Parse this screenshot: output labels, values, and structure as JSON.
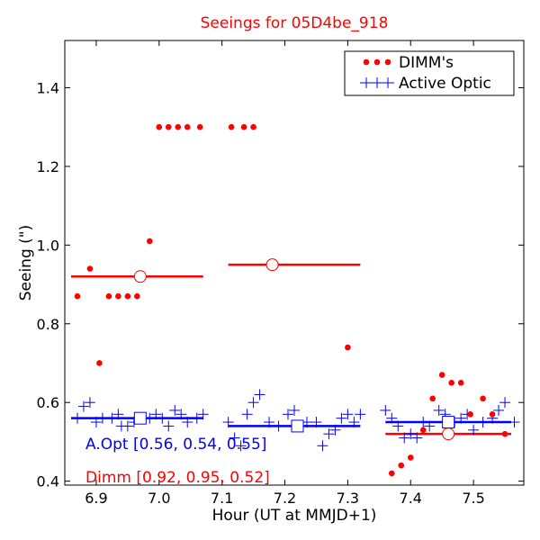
{
  "chart_data": {
    "type": "scatter",
    "title": "Seeings for 05D4be_918",
    "xlabel": "Hour (UT at MMJD+1)",
    "ylabel": "Seeing (\")",
    "xlim": [
      6.85,
      7.58
    ],
    "ylim": [
      0.39,
      1.52
    ],
    "xticks": [
      "6.9",
      "7.0",
      "7.1",
      "7.2",
      "7.3",
      "7.4",
      "7.5"
    ],
    "yticks": [
      "0.4",
      "0.6",
      "0.8",
      "1.0",
      "1.2",
      "1.4"
    ],
    "legend_position": "top-right",
    "colors": {
      "dimm": "#ff0000",
      "aopt": "#0000ff"
    },
    "series": [
      {
        "name": "DIMM's",
        "marker": "dot",
        "points": [
          [
            6.87,
            0.87
          ],
          [
            6.89,
            0.94
          ],
          [
            6.905,
            0.7
          ],
          [
            6.92,
            0.87
          ],
          [
            6.935,
            0.87
          ],
          [
            6.95,
            0.87
          ],
          [
            6.965,
            0.87
          ],
          [
            6.985,
            1.01
          ],
          [
            7.0,
            1.3
          ],
          [
            7.015,
            1.3
          ],
          [
            7.03,
            1.3
          ],
          [
            7.045,
            1.3
          ],
          [
            7.065,
            1.3
          ],
          [
            7.115,
            1.3
          ],
          [
            7.135,
            1.3
          ],
          [
            7.15,
            1.3
          ],
          [
            7.3,
            0.74
          ],
          [
            7.37,
            0.42
          ],
          [
            7.385,
            0.44
          ],
          [
            7.4,
            0.46
          ],
          [
            7.42,
            0.53
          ],
          [
            7.435,
            0.61
          ],
          [
            7.45,
            0.67
          ],
          [
            7.465,
            0.65
          ],
          [
            7.48,
            0.65
          ],
          [
            7.495,
            0.57
          ],
          [
            7.515,
            0.61
          ],
          [
            7.53,
            0.57
          ],
          [
            7.55,
            0.52
          ]
        ]
      },
      {
        "name": "Active Optic",
        "marker": "plus",
        "points": [
          [
            6.87,
            0.56
          ],
          [
            6.88,
            0.59
          ],
          [
            6.89,
            0.6
          ],
          [
            6.9,
            0.55
          ],
          [
            6.91,
            0.56
          ],
          [
            6.925,
            0.56
          ],
          [
            6.935,
            0.57
          ],
          [
            6.94,
            0.54
          ],
          [
            6.95,
            0.54
          ],
          [
            6.96,
            0.55
          ],
          [
            6.985,
            0.56
          ],
          [
            6.995,
            0.57
          ],
          [
            7.005,
            0.56
          ],
          [
            7.015,
            0.54
          ],
          [
            7.025,
            0.58
          ],
          [
            7.035,
            0.57
          ],
          [
            7.045,
            0.55
          ],
          [
            7.06,
            0.56
          ],
          [
            7.07,
            0.57
          ],
          [
            7.11,
            0.55
          ],
          [
            7.12,
            0.51
          ],
          [
            7.13,
            0.49
          ],
          [
            7.14,
            0.57
          ],
          [
            7.15,
            0.6
          ],
          [
            7.16,
            0.62
          ],
          [
            7.175,
            0.55
          ],
          [
            7.19,
            0.54
          ],
          [
            7.205,
            0.57
          ],
          [
            7.215,
            0.58
          ],
          [
            7.225,
            0.54
          ],
          [
            7.235,
            0.55
          ],
          [
            7.25,
            0.55
          ],
          [
            7.26,
            0.49
          ],
          [
            7.27,
            0.52
          ],
          [
            7.28,
            0.53
          ],
          [
            7.29,
            0.56
          ],
          [
            7.3,
            0.57
          ],
          [
            7.31,
            0.55
          ],
          [
            7.32,
            0.57
          ],
          [
            7.36,
            0.58
          ],
          [
            7.37,
            0.56
          ],
          [
            7.38,
            0.54
          ],
          [
            7.39,
            0.51
          ],
          [
            7.4,
            0.52
          ],
          [
            7.41,
            0.51
          ],
          [
            7.42,
            0.55
          ],
          [
            7.43,
            0.54
          ],
          [
            7.445,
            0.58
          ],
          [
            7.455,
            0.57
          ],
          [
            7.47,
            0.55
          ],
          [
            7.48,
            0.56
          ],
          [
            7.49,
            0.57
          ],
          [
            7.5,
            0.53
          ],
          [
            7.515,
            0.55
          ],
          [
            7.53,
            0.56
          ],
          [
            7.54,
            0.58
          ],
          [
            7.55,
            0.6
          ],
          [
            7.565,
            0.55
          ]
        ]
      }
    ],
    "medians": [
      {
        "series": "DIMM's",
        "x_start": 6.86,
        "x_end": 7.07,
        "y": 0.92,
        "x_marker": 6.97
      },
      {
        "series": "DIMM's",
        "x_start": 7.11,
        "x_end": 7.32,
        "y": 0.95,
        "x_marker": 7.18
      },
      {
        "series": "DIMM's",
        "x_start": 7.36,
        "x_end": 7.56,
        "y": 0.52,
        "x_marker": 7.46
      },
      {
        "series": "Active Optic",
        "x_start": 6.86,
        "x_end": 7.07,
        "y": 0.56,
        "x_marker": 6.97
      },
      {
        "series": "Active Optic",
        "x_start": 7.11,
        "x_end": 7.32,
        "y": 0.54,
        "x_marker": 7.22
      },
      {
        "series": "Active Optic",
        "x_start": 7.36,
        "x_end": 7.56,
        "y": 0.55,
        "x_marker": 7.46
      }
    ],
    "annotations": {
      "aopt": "A.Opt [0.56, 0.54, 0.55]",
      "dimm": "Dimm [0.92, 0.95, 0.52]"
    }
  }
}
